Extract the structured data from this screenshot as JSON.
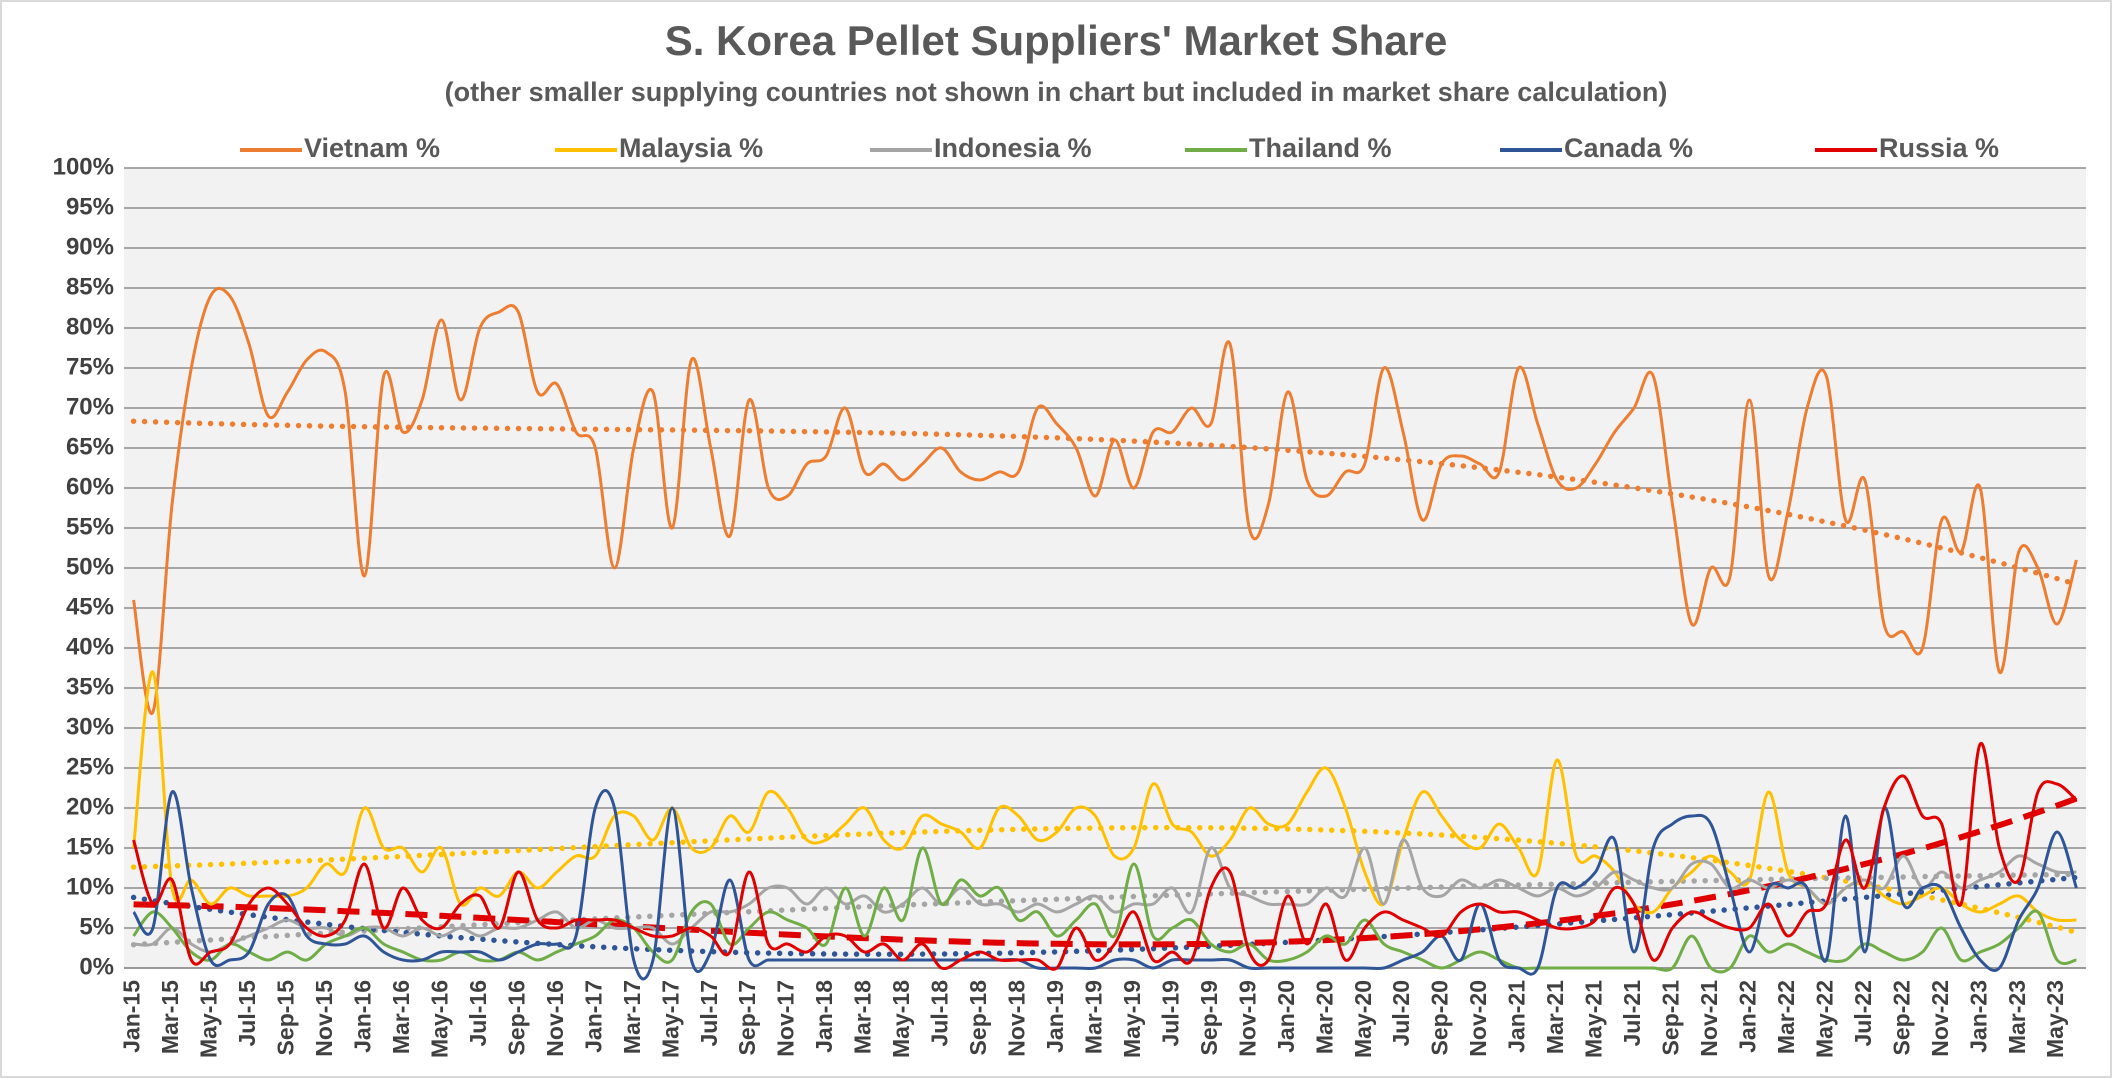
{
  "chart_data": {
    "type": "line",
    "title": "S. Korea Pellet Suppliers' Market Share",
    "subtitle": "(other smaller supplying countries not shown in chart but included in market share calculation)",
    "categories": [
      "Jan-15",
      null,
      "Mar-15",
      null,
      "May-15",
      null,
      "Jul-15",
      null,
      "Sep-15",
      null,
      "Nov-15",
      null,
      "Jan-16",
      null,
      "Mar-16",
      null,
      "May-16",
      null,
      "Jul-16",
      null,
      "Sep-16",
      null,
      "Nov-16",
      null,
      "Jan-17",
      null,
      "Mar-17",
      null,
      "May-17",
      null,
      "Jul-17",
      null,
      "Sep-17",
      null,
      "Nov-17",
      null,
      "Jan-18",
      null,
      "Mar-18",
      null,
      "May-18",
      null,
      "Jul-18",
      null,
      "Sep-18",
      null,
      "Nov-18",
      null,
      "Jan-19",
      null,
      "Mar-19",
      null,
      "May-19",
      null,
      "Jul-19",
      null,
      "Sep-19",
      null,
      "Nov-19",
      null,
      "Jan-20",
      null,
      "Mar-20",
      null,
      "May-20",
      null,
      "Jul-20",
      null,
      "Sep-20",
      null,
      "Nov-20",
      null,
      "Jan-21",
      null,
      "Mar-21",
      null,
      "May-21",
      null,
      "Jul-21",
      null,
      "Sep-21",
      null,
      "Nov-21",
      null,
      "Jan-22",
      null,
      "Mar-22",
      null,
      "May-22",
      null,
      "Jul-22",
      null,
      "Sep-22",
      null,
      "Nov-22",
      null,
      "Jan-23",
      null,
      "Mar-23",
      null,
      "May-23",
      null
    ],
    "series": [
      {
        "name": "Vietnam %",
        "color": "#ed7d31",
        "trendline": {
          "type": "polynomial",
          "order": 3,
          "style": "dotted"
        },
        "values": [
          46,
          32,
          58,
          75,
          84,
          84,
          78,
          69,
          72,
          76,
          77,
          72,
          49,
          74,
          67,
          71,
          81,
          71,
          80,
          82,
          82,
          72,
          73,
          67,
          65,
          50,
          65,
          72,
          55,
          76,
          65,
          54,
          71,
          60,
          59,
          63,
          64,
          70,
          62,
          63,
          61,
          63,
          65,
          62,
          61,
          62,
          62,
          70,
          68,
          65,
          59,
          66,
          60,
          67,
          67,
          70,
          68,
          78,
          55,
          58,
          72,
          61,
          59,
          62,
          63,
          75,
          67,
          56,
          63,
          64,
          63,
          62,
          75,
          68,
          61,
          60,
          63,
          67,
          70,
          74,
          58,
          43,
          50,
          49,
          71,
          49,
          57,
          70,
          74,
          56,
          61,
          43,
          42,
          40,
          56,
          52,
          60,
          37,
          52,
          50,
          43,
          51
        ]
      },
      {
        "name": "Malaysia %",
        "color": "#ffc000",
        "trendline": {
          "type": "polynomial",
          "order": 3,
          "style": "dotted"
        },
        "values": [
          15,
          37,
          10,
          11,
          8,
          10,
          9,
          9,
          9,
          10,
          13,
          12,
          20,
          15,
          15,
          12,
          15,
          8,
          10,
          9,
          12,
          10,
          12,
          14,
          14,
          19,
          19,
          16,
          20,
          15,
          15,
          19,
          17,
          22,
          20,
          16,
          16,
          18,
          20,
          16,
          15,
          19,
          18,
          17,
          15,
          20,
          19,
          16,
          17,
          20,
          19,
          14,
          15,
          23,
          18,
          17,
          14,
          16,
          20,
          18,
          18,
          22,
          25,
          20,
          12,
          8,
          16,
          22,
          19,
          16,
          15,
          18,
          15,
          12,
          26,
          14,
          14,
          12,
          8,
          7,
          10,
          12,
          14,
          12,
          11,
          22,
          12,
          10,
          8,
          10,
          11,
          9,
          8,
          9,
          10,
          8,
          7,
          8,
          9,
          7,
          6,
          6
        ]
      },
      {
        "name": "Indonesia %",
        "color": "#a5a5a5",
        "trendline": {
          "type": "polynomial",
          "order": 3,
          "style": "dotted"
        },
        "values": [
          3,
          3,
          5,
          3,
          2,
          3,
          4,
          5,
          6,
          5,
          5,
          4,
          5,
          5,
          4,
          5,
          4,
          5,
          4,
          5,
          5,
          6,
          7,
          5,
          6,
          5,
          5,
          5,
          3,
          5,
          7,
          7,
          8,
          10,
          10,
          8,
          10,
          8,
          9,
          7,
          8,
          10,
          8,
          10,
          8,
          8,
          7,
          8,
          7,
          8,
          9,
          7,
          8,
          8,
          10,
          7,
          15,
          10,
          9,
          8,
          8,
          8,
          10,
          9,
          15,
          8,
          16,
          10,
          9,
          11,
          10,
          11,
          10,
          9,
          10,
          9,
          10,
          12,
          11,
          10,
          10,
          13,
          13,
          10,
          11,
          10,
          11,
          10,
          8,
          10,
          11,
          10,
          14,
          10,
          12,
          10,
          11,
          12,
          14,
          13,
          12,
          12
        ]
      },
      {
        "name": "Thailand %",
        "color": "#70ad47",
        "values": [
          4,
          7,
          5,
          2,
          1,
          3,
          2,
          1,
          2,
          1,
          3,
          4,
          5,
          3,
          2,
          1,
          1,
          2,
          1,
          1,
          2,
          1,
          2,
          3,
          4,
          6,
          5,
          2,
          1,
          7,
          8,
          3,
          5,
          7,
          6,
          5,
          3,
          10,
          4,
          10,
          6,
          15,
          8,
          11,
          9,
          10,
          6,
          7,
          4,
          6,
          8,
          4,
          13,
          4,
          5,
          6,
          3,
          2,
          3,
          1,
          1,
          2,
          4,
          3,
          6,
          3,
          2,
          1,
          0,
          1,
          2,
          1,
          0,
          0,
          0,
          0,
          0,
          0,
          0,
          0,
          0,
          4,
          0,
          0,
          4,
          2,
          3,
          2,
          1,
          1,
          3,
          2,
          1,
          2,
          5,
          1,
          2,
          3,
          5,
          7,
          1,
          1
        ]
      },
      {
        "name": "Canada %",
        "color": "#2f5597",
        "trendline": {
          "type": "polynomial",
          "order": 3,
          "style": "dotted"
        },
        "values": [
          7,
          5,
          22,
          10,
          1,
          1,
          2,
          8,
          9,
          4,
          3,
          3,
          4,
          2,
          1,
          1,
          2,
          2,
          2,
          1,
          2,
          3,
          3,
          4,
          20,
          20,
          1,
          1,
          20,
          1,
          2,
          11,
          1,
          1,
          1,
          1,
          1,
          1,
          1,
          1,
          1,
          1,
          1,
          1,
          1,
          1,
          1,
          0,
          0,
          0,
          0,
          1,
          1,
          0,
          1,
          1,
          1,
          1,
          0,
          0,
          0,
          0,
          0,
          0,
          0,
          0,
          1,
          2,
          4,
          1,
          8,
          1,
          0,
          0,
          10,
          10,
          12,
          16,
          2,
          15,
          18,
          19,
          18,
          10,
          2,
          10,
          10,
          10,
          1,
          19,
          2,
          20,
          8,
          10,
          10,
          5,
          1,
          0,
          6,
          10,
          17,
          10
        ]
      },
      {
        "name": "Russia %",
        "color": "#e00000",
        "trendline": {
          "type": "polynomial",
          "order": 3,
          "style": "dashed"
        },
        "values": [
          16,
          8,
          11,
          1,
          2,
          3,
          8,
          10,
          8,
          5,
          4,
          6,
          13,
          5,
          10,
          6,
          5,
          8,
          9,
          5,
          12,
          6,
          5,
          6,
          6,
          6,
          5,
          4,
          4,
          5,
          4,
          2,
          12,
          3,
          3,
          2,
          4,
          4,
          2,
          3,
          1,
          3,
          0,
          1,
          2,
          1,
          1,
          1,
          0,
          5,
          1,
          3,
          7,
          1,
          2,
          1,
          10,
          12,
          2,
          1,
          9,
          3,
          8,
          1,
          5,
          7,
          6,
          5,
          4,
          7,
          8,
          7,
          7,
          6,
          5,
          5,
          6,
          10,
          8,
          1,
          5,
          7,
          6,
          5,
          5,
          8,
          4,
          7,
          8,
          16,
          10,
          20,
          24,
          19,
          18,
          8,
          28,
          15,
          11,
          22,
          23,
          21
        ]
      }
    ],
    "ylim": [
      0,
      100
    ],
    "yticks": [
      {
        "value": 0,
        "label": "0%"
      },
      {
        "value": 5,
        "label": "5%"
      },
      {
        "value": 10,
        "label": "10%"
      },
      {
        "value": 15,
        "label": "15%"
      },
      {
        "value": 20,
        "label": "20%"
      },
      {
        "value": 25,
        "label": "25%"
      },
      {
        "value": 30,
        "label": "30%"
      },
      {
        "value": 35,
        "label": "35%"
      },
      {
        "value": 40,
        "label": "40%"
      },
      {
        "value": 45,
        "label": "45%"
      },
      {
        "value": 50,
        "label": "50%"
      },
      {
        "value": 55,
        "label": "55%"
      },
      {
        "value": 60,
        "label": "60%"
      },
      {
        "value": 65,
        "label": "65%"
      },
      {
        "value": 70,
        "label": "70%"
      },
      {
        "value": 75,
        "label": "75%"
      },
      {
        "value": 80,
        "label": "80%"
      },
      {
        "value": 85,
        "label": "85%"
      },
      {
        "value": 90,
        "label": "90%"
      },
      {
        "value": 95,
        "label": "95%"
      },
      {
        "value": 100,
        "label": "100%"
      }
    ],
    "grid": true,
    "smooth": true,
    "legend": "top"
  }
}
